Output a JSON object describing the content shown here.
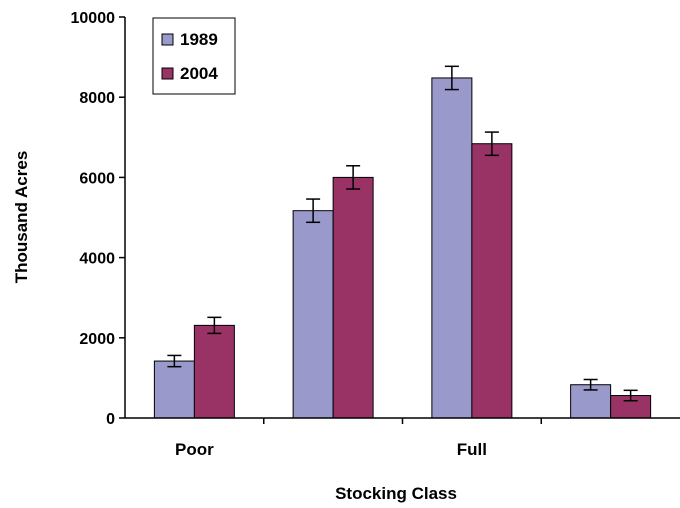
{
  "chart_data": {
    "type": "bar",
    "xlabel": "Stocking Class",
    "ylabel": "Thousand Acres",
    "ylim": [
      0,
      10000
    ],
    "y_ticks": [
      "0",
      "2000",
      "4000",
      "6000",
      "8000",
      "10000"
    ],
    "categories": [
      "Poor",
      "",
      "Full",
      ""
    ],
    "series": [
      {
        "name": "1989",
        "color": "#9999cc",
        "values": [
          1420,
          5170,
          8480,
          830
        ],
        "errors": [
          140,
          290,
          290,
          130
        ]
      },
      {
        "name": "2004",
        "color": "#993366",
        "values": [
          2310,
          6000,
          6840,
          560
        ],
        "errors": [
          200,
          290,
          290,
          130
        ]
      }
    ],
    "error_bars": true,
    "grid": false,
    "legend_position": "top-left"
  }
}
